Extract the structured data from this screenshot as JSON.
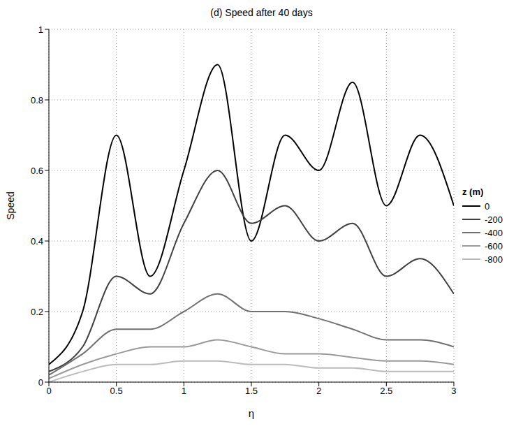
{
  "chart_data": {
    "type": "line",
    "title": "(d) Speed after 40 days",
    "x_label": "η",
    "y_label": "Speed",
    "legend_title": "z (m)",
    "x": [
      0,
      0.25,
      0.5,
      0.75,
      1,
      1.25,
      1.5,
      1.75,
      2,
      2.25,
      2.5,
      2.75,
      3
    ],
    "series": [
      {
        "name": "0",
        "color": "#000000",
        "values": [
          0.05,
          0.2,
          0.7,
          0.3,
          0.6,
          0.9,
          0.4,
          0.7,
          0.6,
          0.85,
          0.5,
          0.7,
          0.5
        ]
      },
      {
        "name": "-200",
        "color": "#404040",
        "values": [
          0.03,
          0.1,
          0.3,
          0.25,
          0.45,
          0.6,
          0.45,
          0.5,
          0.4,
          0.45,
          0.3,
          0.35,
          0.25
        ]
      },
      {
        "name": "-400",
        "color": "#707070",
        "values": [
          0.02,
          0.08,
          0.15,
          0.15,
          0.2,
          0.25,
          0.2,
          0.2,
          0.18,
          0.15,
          0.12,
          0.12,
          0.1
        ]
      },
      {
        "name": "-600",
        "color": "#999999",
        "values": [
          0.01,
          0.05,
          0.08,
          0.1,
          0.1,
          0.12,
          0.1,
          0.08,
          0.08,
          0.07,
          0.06,
          0.06,
          0.05
        ]
      },
      {
        "name": "-800",
        "color": "#bbbbbb",
        "values": [
          0,
          0.03,
          0.05,
          0.05,
          0.06,
          0.06,
          0.05,
          0.05,
          0.04,
          0.04,
          0.03,
          0.03,
          0.03
        ]
      }
    ],
    "xlim": [
      0,
      3
    ],
    "xticks": [
      0,
      0.5,
      1,
      1.5,
      2,
      2.5,
      3
    ],
    "ylim": [
      0,
      1
    ],
    "yticks": [
      0,
      0.2,
      0.4,
      0.6,
      0.8,
      1
    ],
    "grid": true,
    "legend": "right",
    "marker": "none",
    "line_style": "solid"
  }
}
